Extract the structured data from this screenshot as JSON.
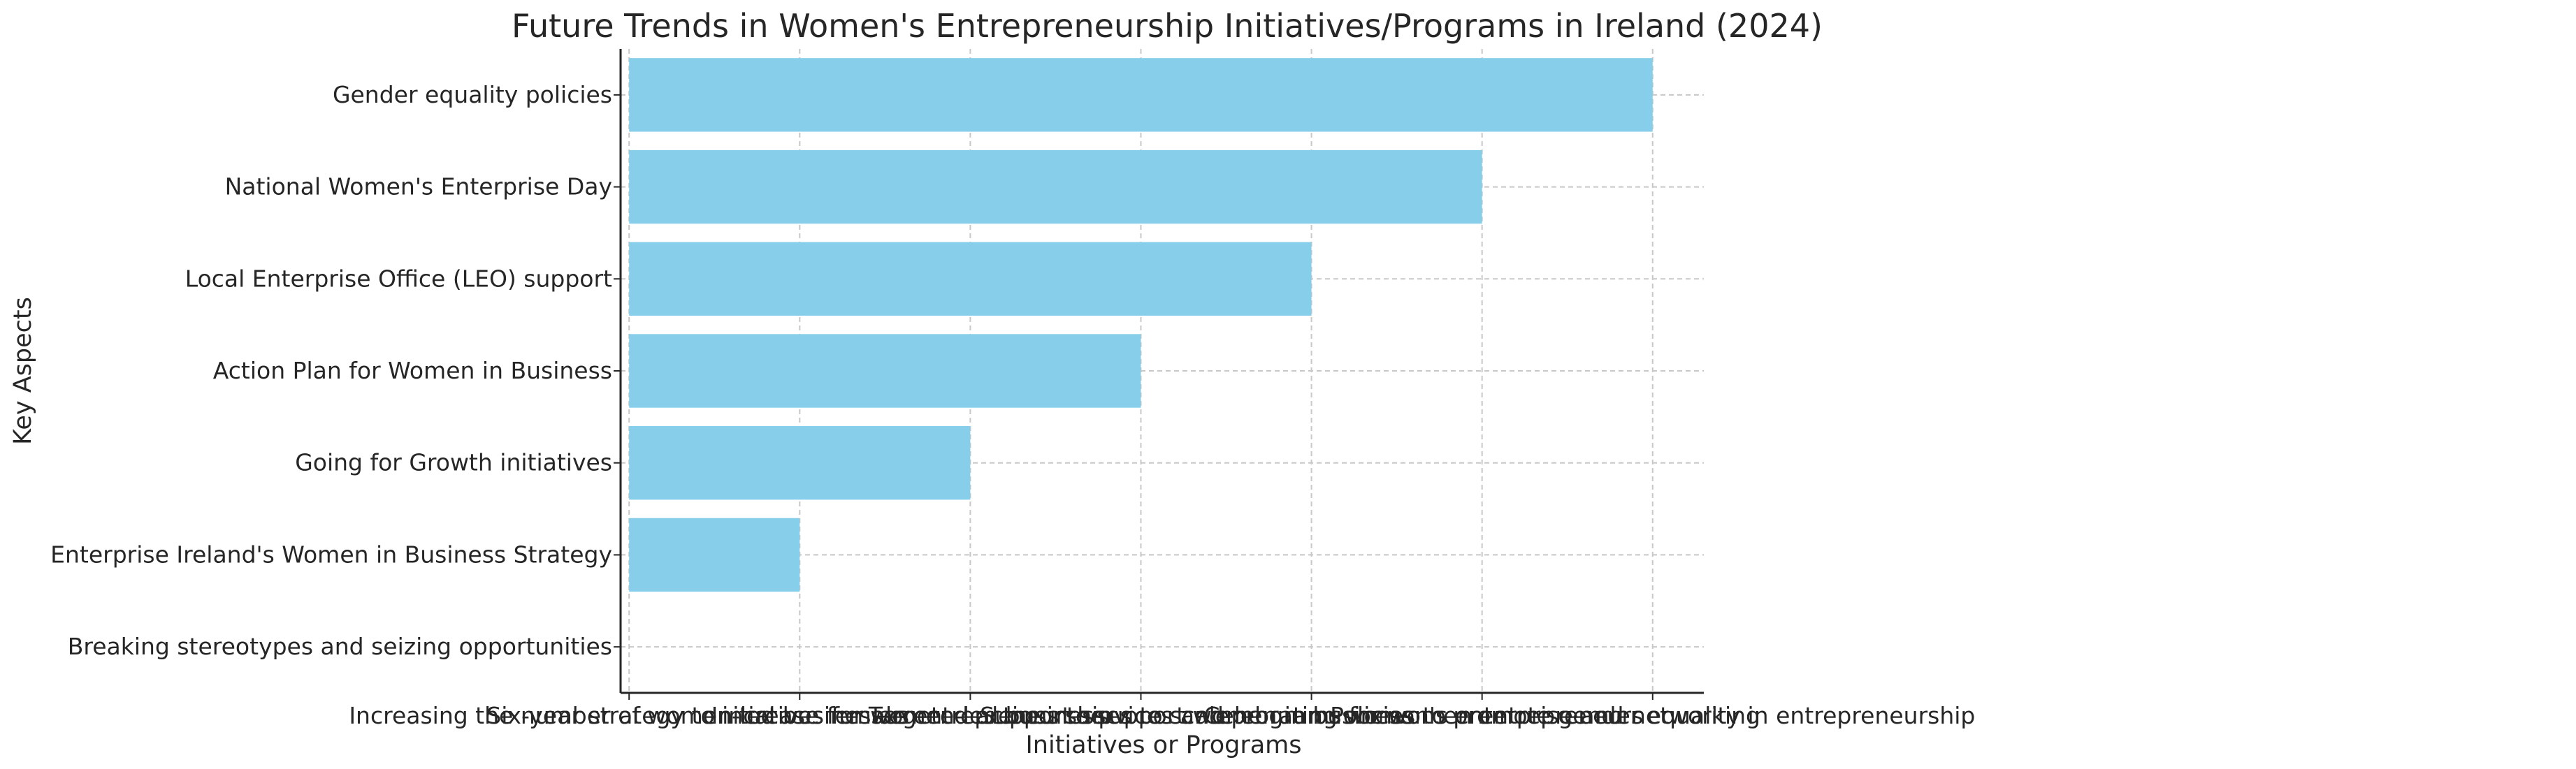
{
  "chart_data": {
    "type": "bar",
    "orientation": "horizontal",
    "title": "Future Trends in Women's Entrepreneurship Initiatives/Programs in Ireland (2024)",
    "xlabel": "Initiatives or Programs",
    "ylabel": "Key Aspects",
    "categories": [
      "Breaking stereotypes and seizing opportunities",
      "Enterprise Ireland's Women in Business Strategy",
      "Going for Growth initiatives",
      "Action Plan for Women in Business",
      "Local Enterprise Office (LEO) support",
      "National Women's Enterprise Day",
      "Gender equality policies"
    ],
    "x_tick_labels": [
      "Increasing the number of women-led businesses",
      "Six-year strategy to increase female entrepreneurship",
      "Initiatives for women-led businesses to scale",
      "Targeted actions to support women in business",
      "Support services and programs for women entrepreneurs",
      "Celebrating women's enterprise and networking",
      "Policies to promote gender equality in entrepreneurship"
    ],
    "values": [
      0,
      1,
      2,
      3,
      4,
      5,
      6
    ],
    "xlim": [
      -0.05,
      6.3
    ],
    "color": "#87ceeb",
    "grid": true,
    "grid_style": "dashed",
    "legend": false
  }
}
